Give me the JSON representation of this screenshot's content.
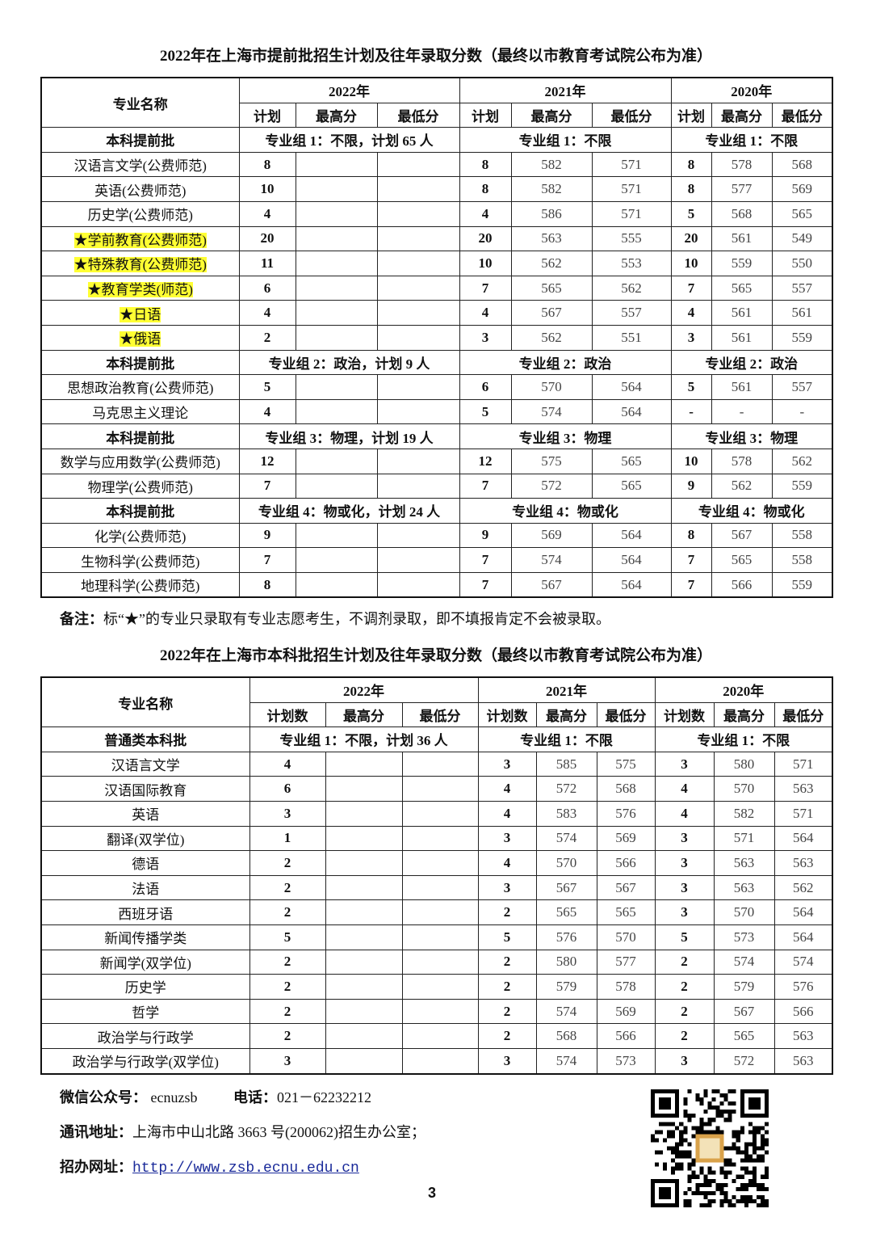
{
  "table1": {
    "title": "2022年在上海市提前批招生计划及往年录取分数（最终以市教育考试院公布为准）",
    "header": {
      "name": "专业名称",
      "years": [
        "2022年",
        "2021年",
        "2020年"
      ],
      "sub": [
        "计划",
        "最高分",
        "最低分",
        "计划",
        "最高分",
        "最低分",
        "计划",
        "最高分",
        "最低分"
      ]
    },
    "rows": [
      {
        "type": "group",
        "name": "本科提前批",
        "g": [
          "专业组 1：不限，计划 65 人",
          "专业组 1：不限",
          "专业组 1：不限"
        ]
      },
      {
        "name": "汉语言文学(公费师范)",
        "c": [
          "8",
          "",
          "",
          "8",
          "582",
          "571",
          "8",
          "578",
          "568"
        ]
      },
      {
        "name": "英语(公费师范)",
        "c": [
          "10",
          "",
          "",
          "8",
          "582",
          "571",
          "8",
          "577",
          "569"
        ]
      },
      {
        "name": "历史学(公费师范)",
        "c": [
          "4",
          "",
          "",
          "4",
          "586",
          "571",
          "5",
          "568",
          "565"
        ]
      },
      {
        "name": "★学前教育(公费师范)",
        "hl": true,
        "c": [
          "20",
          "",
          "",
          "20",
          "563",
          "555",
          "20",
          "561",
          "549"
        ]
      },
      {
        "name": "★特殊教育(公费师范)",
        "hl": true,
        "c": [
          "11",
          "",
          "",
          "10",
          "562",
          "553",
          "10",
          "559",
          "550"
        ]
      },
      {
        "name": "★教育学类(师范)",
        "hl": true,
        "c": [
          "6",
          "",
          "",
          "7",
          "565",
          "562",
          "7",
          "565",
          "557"
        ]
      },
      {
        "name": "★日语",
        "hl": true,
        "c": [
          "4",
          "",
          "",
          "4",
          "567",
          "557",
          "4",
          "561",
          "561"
        ]
      },
      {
        "name": "★俄语",
        "hl": true,
        "c": [
          "2",
          "",
          "",
          "3",
          "562",
          "551",
          "3",
          "561",
          "559"
        ]
      },
      {
        "type": "group",
        "name": "本科提前批",
        "g": [
          "专业组 2：政治，计划 9 人",
          "专业组 2：政治",
          "专业组 2：政治"
        ]
      },
      {
        "name": "思想政治教育(公费师范)",
        "c": [
          "5",
          "",
          "",
          "6",
          "570",
          "564",
          "5",
          "561",
          "557"
        ]
      },
      {
        "name": "马克思主义理论",
        "c": [
          "4",
          "",
          "",
          "5",
          "574",
          "564",
          "-",
          "-",
          "-"
        ]
      },
      {
        "type": "group",
        "name": "本科提前批",
        "g": [
          "专业组 3：物理，计划 19 人",
          "专业组 3：物理",
          "专业组 3：物理"
        ]
      },
      {
        "name": "数学与应用数学(公费师范)",
        "c": [
          "12",
          "",
          "",
          "12",
          "575",
          "565",
          "10",
          "578",
          "562"
        ]
      },
      {
        "name": "物理学(公费师范)",
        "c": [
          "7",
          "",
          "",
          "7",
          "572",
          "565",
          "9",
          "562",
          "559"
        ]
      },
      {
        "type": "group",
        "name": "本科提前批",
        "g": [
          "专业组 4：物或化，计划 24 人",
          "专业组 4：物或化",
          "专业组 4：物或化"
        ]
      },
      {
        "name": "化学(公费师范)",
        "c": [
          "9",
          "",
          "",
          "9",
          "569",
          "564",
          "8",
          "567",
          "558"
        ]
      },
      {
        "name": "生物科学(公费师范)",
        "c": [
          "7",
          "",
          "",
          "7",
          "574",
          "564",
          "7",
          "565",
          "558"
        ]
      },
      {
        "name": "地理科学(公费师范)",
        "c": [
          "8",
          "",
          "",
          "7",
          "567",
          "564",
          "7",
          "566",
          "559"
        ]
      }
    ]
  },
  "note": {
    "label": "备注：",
    "text": "标“★”的专业只录取有专业志愿考生，不调剂录取，即不填报肯定不会被录取。"
  },
  "table2": {
    "title": "2022年在上海市本科批招生计划及往年录取分数（最终以市教育考试院公布为准）",
    "header": {
      "name": "专业名称",
      "years": [
        "2022年",
        "2021年",
        "2020年"
      ],
      "sub": [
        "计划数",
        "最高分",
        "最低分",
        "计划数",
        "最高分",
        "最低分",
        "计划数",
        "最高分",
        "最低分"
      ]
    },
    "rows": [
      {
        "type": "group",
        "name": "普通类本科批",
        "g": [
          "专业组 1：不限，计划 36 人",
          "专业组 1：不限",
          "专业组 1：不限"
        ]
      },
      {
        "name": "汉语言文学",
        "c": [
          "4",
          "",
          "",
          "3",
          "585",
          "575",
          "3",
          "580",
          "571"
        ]
      },
      {
        "name": "汉语国际教育",
        "c": [
          "6",
          "",
          "",
          "4",
          "572",
          "568",
          "4",
          "570",
          "563"
        ]
      },
      {
        "name": "英语",
        "c": [
          "3",
          "",
          "",
          "4",
          "583",
          "576",
          "4",
          "582",
          "571"
        ]
      },
      {
        "name": "翻译(双学位)",
        "c": [
          "1",
          "",
          "",
          "3",
          "574",
          "569",
          "3",
          "571",
          "564"
        ]
      },
      {
        "name": "德语",
        "c": [
          "2",
          "",
          "",
          "4",
          "570",
          "566",
          "3",
          "563",
          "563"
        ]
      },
      {
        "name": "法语",
        "c": [
          "2",
          "",
          "",
          "3",
          "567",
          "567",
          "3",
          "563",
          "562"
        ]
      },
      {
        "name": "西班牙语",
        "c": [
          "2",
          "",
          "",
          "2",
          "565",
          "565",
          "3",
          "570",
          "564"
        ]
      },
      {
        "name": "新闻传播学类",
        "c": [
          "5",
          "",
          "",
          "5",
          "576",
          "570",
          "5",
          "573",
          "564"
        ]
      },
      {
        "name": "新闻学(双学位)",
        "c": [
          "2",
          "",
          "",
          "2",
          "580",
          "577",
          "2",
          "574",
          "574"
        ]
      },
      {
        "name": "历史学",
        "c": [
          "2",
          "",
          "",
          "2",
          "579",
          "578",
          "2",
          "579",
          "576"
        ]
      },
      {
        "name": "哲学",
        "c": [
          "2",
          "",
          "",
          "2",
          "574",
          "569",
          "2",
          "567",
          "566"
        ]
      },
      {
        "name": "政治学与行政学",
        "c": [
          "2",
          "",
          "",
          "2",
          "568",
          "566",
          "2",
          "565",
          "563"
        ]
      },
      {
        "name": "政治学与行政学(双学位)",
        "c": [
          "3",
          "",
          "",
          "3",
          "574",
          "573",
          "3",
          "572",
          "563"
        ]
      }
    ]
  },
  "footer": {
    "wechat_label": "微信公众号：",
    "wechat": "ecnuzsb",
    "phone_label": "电话：",
    "phone": "021－62232212",
    "address_label": "通讯地址：",
    "address": "上海市中山北路 3663 号(200062)招生办公室；",
    "website_label": "招办网址：",
    "website": "http://www.zsb.ecnu.edu.cn",
    "page_number": "3",
    "qr_icon": "qr-code-icon"
  },
  "colors": {
    "highlight": "#ffff33",
    "link": "#1a2a9a"
  }
}
